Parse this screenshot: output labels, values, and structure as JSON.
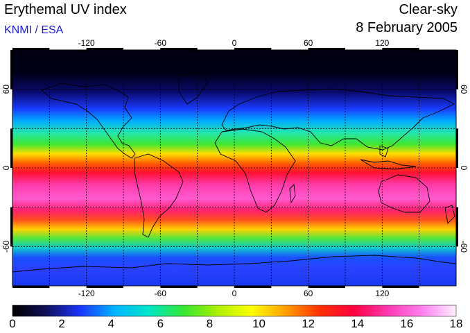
{
  "header": {
    "title": "Erythemal UV index",
    "credit": "KNMI / ESA",
    "condition": "Clear-sky",
    "date": "8 February 2005"
  },
  "map": {
    "projection": "equirectangular",
    "lon_ticks": [
      "-120",
      "-60",
      "0",
      "60",
      "120"
    ],
    "lat_ticks": [
      "60",
      "0",
      "-60"
    ],
    "grid_lon_step_deg": 30,
    "grid_lat_step_deg": 30
  },
  "colorbar": {
    "min": 0,
    "max": 18,
    "labels": [
      "0",
      "2",
      "4",
      "6",
      "8",
      "10",
      "12",
      "14",
      "16",
      "18"
    ],
    "colors": [
      "#000000",
      "#10105a",
      "#1a35ff",
      "#00b4ff",
      "#00e6c8",
      "#32e632",
      "#aaf000",
      "#ffff00",
      "#ffa000",
      "#ff3000",
      "#ff0040",
      "#ff38b0",
      "#ff80f0",
      "#fff0ff"
    ]
  }
}
